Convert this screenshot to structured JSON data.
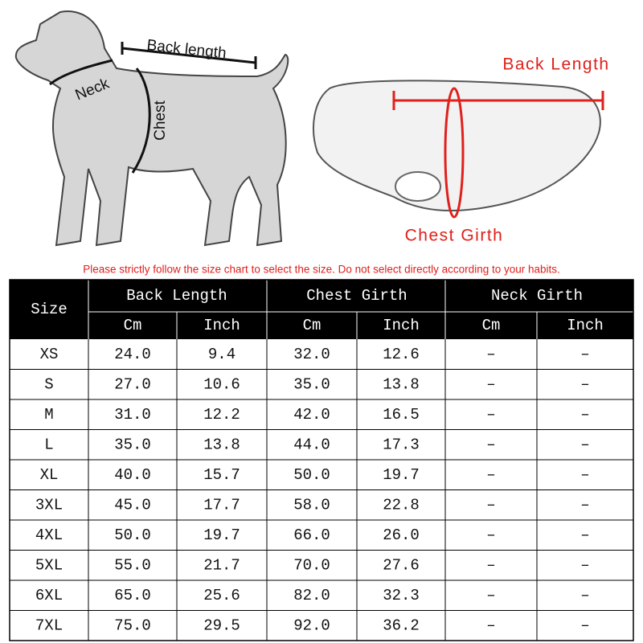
{
  "dog_labels": {
    "back_length": "Back length",
    "neck": "Neck",
    "chest": "Chest"
  },
  "jacket_labels": {
    "back_length": "Back Length",
    "chest_girth": "Chest Girth"
  },
  "notice": "Please strictly follow the size chart to select the size. Do not select directly according to your habits.",
  "table": {
    "size_header": "Size",
    "groups": [
      "Back Length",
      "Chest Girth",
      "Neck Girth"
    ],
    "units": [
      "Cm",
      "Inch",
      "Cm",
      "Inch",
      "Cm",
      "Inch"
    ],
    "rows": [
      [
        "XS",
        "24.0",
        "9.4",
        "32.0",
        "12.6",
        "–",
        "–"
      ],
      [
        "S",
        "27.0",
        "10.6",
        "35.0",
        "13.8",
        "–",
        "–"
      ],
      [
        "M",
        "31.0",
        "12.2",
        "42.0",
        "16.5",
        "–",
        "–"
      ],
      [
        "L",
        "35.0",
        "13.8",
        "44.0",
        "17.3",
        "–",
        "–"
      ],
      [
        "XL",
        "40.0",
        "15.7",
        "50.0",
        "19.7",
        "–",
        "–"
      ],
      [
        "3XL",
        "45.0",
        "17.7",
        "58.0",
        "22.8",
        "–",
        "–"
      ],
      [
        "4XL",
        "50.0",
        "19.7",
        "66.0",
        "26.0",
        "–",
        "–"
      ],
      [
        "5XL",
        "55.0",
        "21.7",
        "70.0",
        "27.6",
        "–",
        "–"
      ],
      [
        "6XL",
        "65.0",
        "25.6",
        "82.0",
        "32.3",
        "–",
        "–"
      ],
      [
        "7XL",
        "75.0",
        "29.5",
        "92.0",
        "36.2",
        "–",
        "–"
      ]
    ]
  }
}
